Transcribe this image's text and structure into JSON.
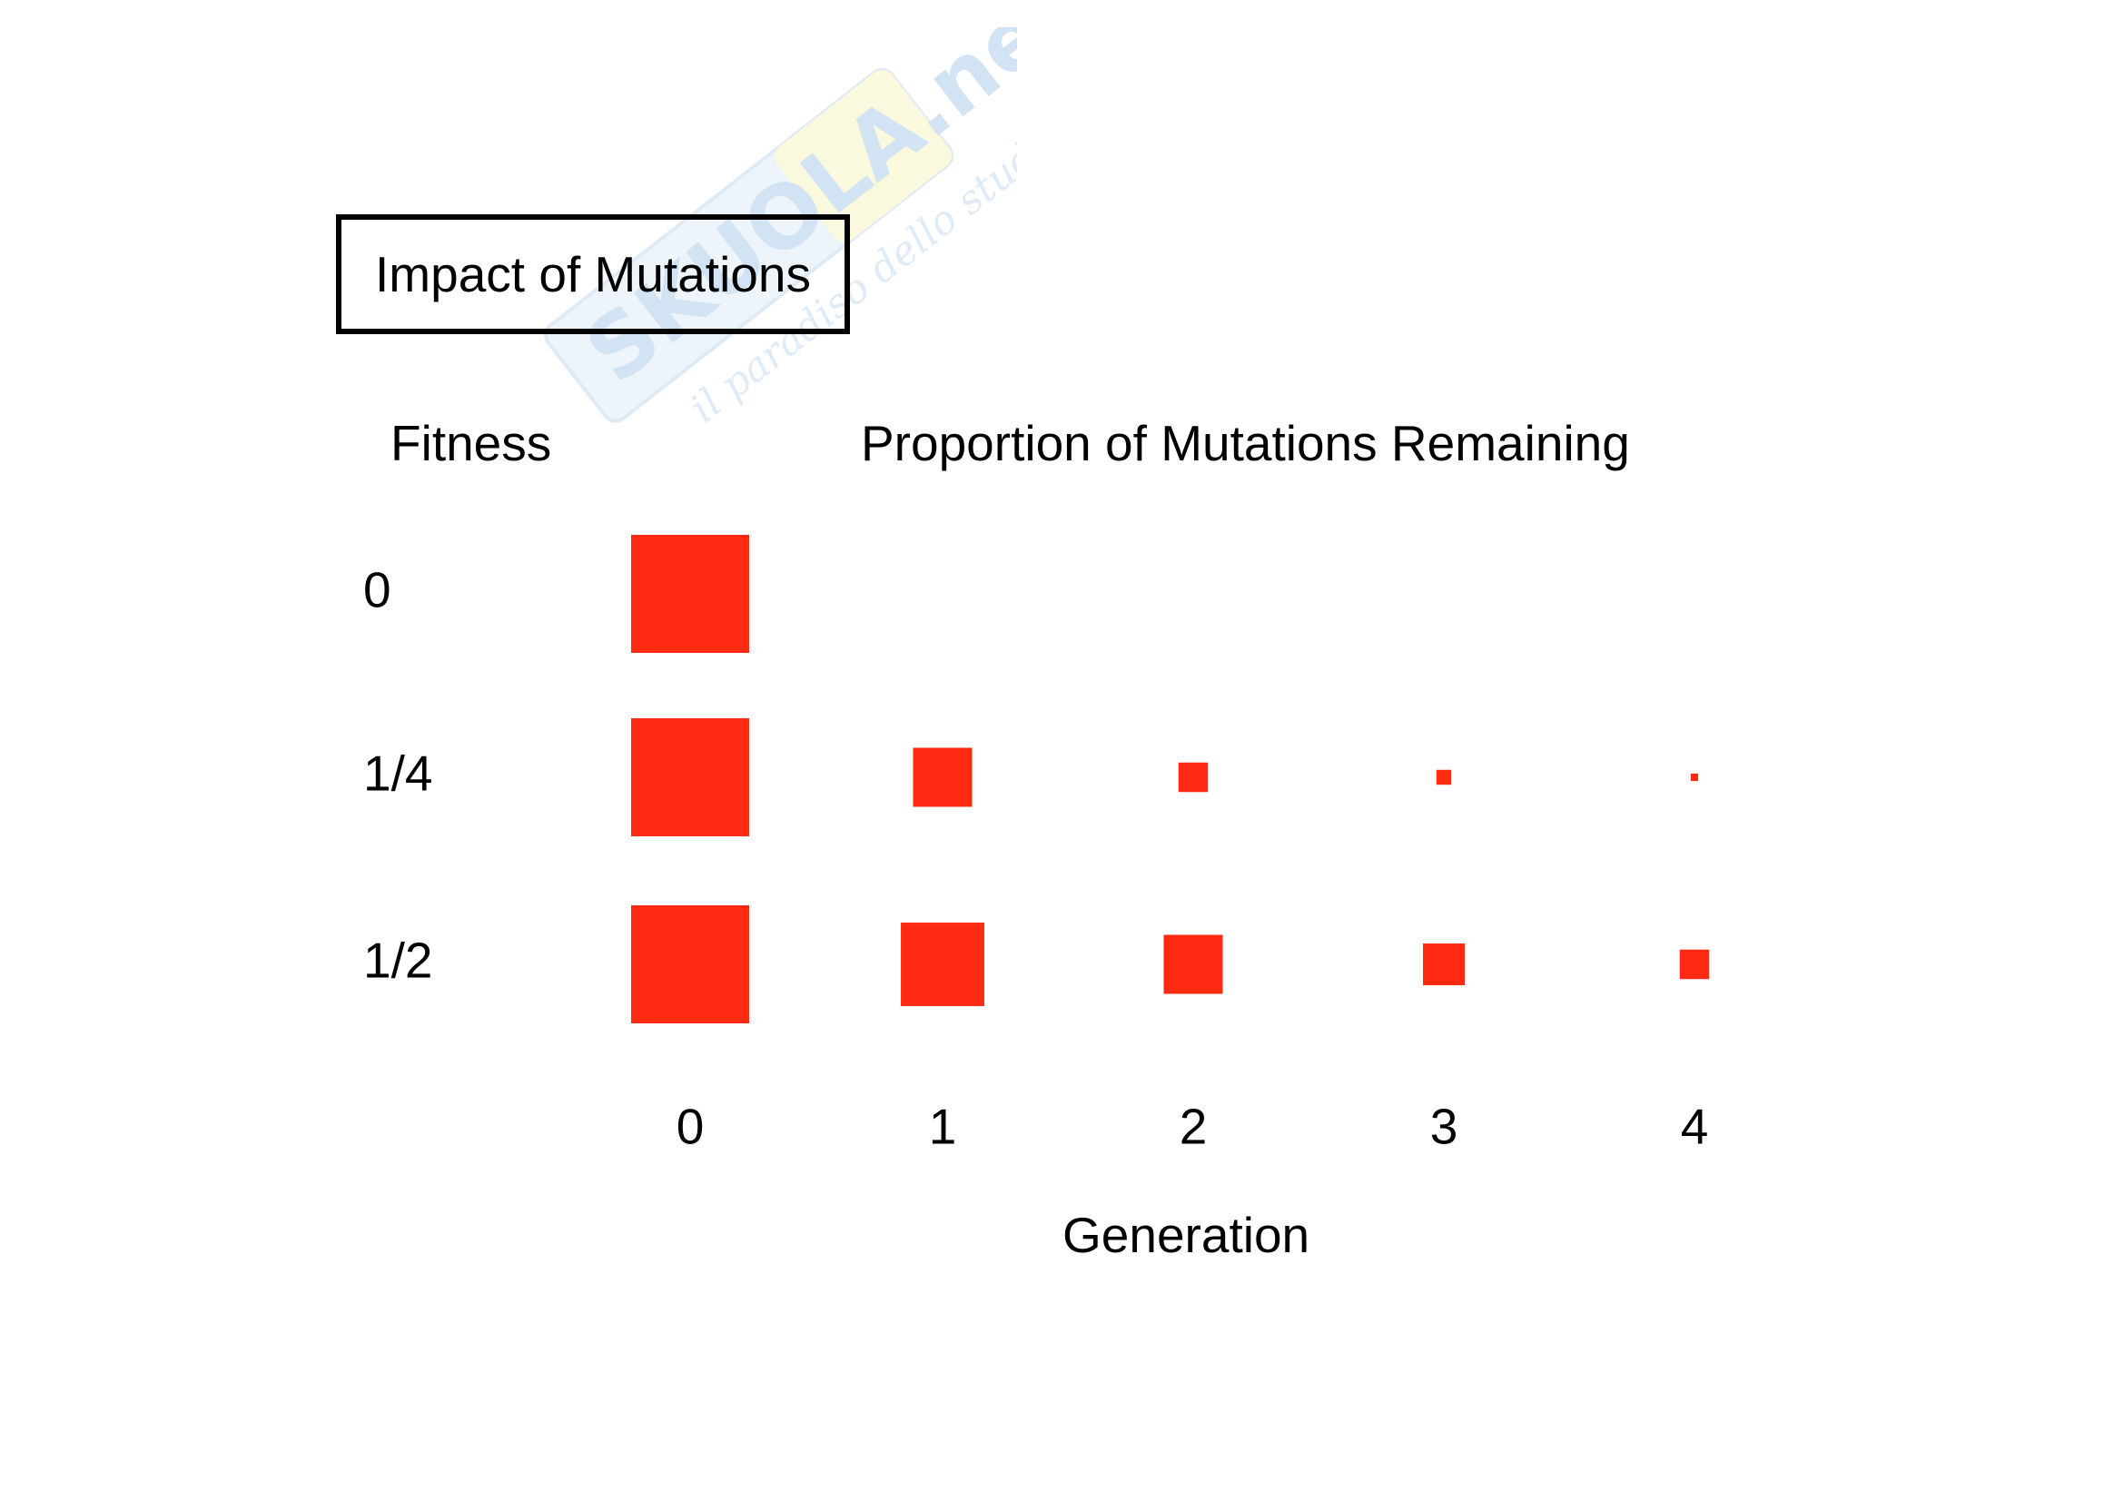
{
  "chart_data": {
    "type": "bubble-matrix",
    "title": "Impact of Mutations",
    "row_header": "Fitness",
    "column_header": "Proportion of Mutations Remaining",
    "xlabel": "Generation",
    "categories": [
      "0",
      "1",
      "2",
      "3",
      "4"
    ],
    "series": [
      {
        "name": "0",
        "values": [
          1.0,
          0,
          0,
          0,
          0
        ]
      },
      {
        "name": "1/4",
        "values": [
          1.0,
          0.25,
          0.0625,
          0.016,
          0.004
        ]
      },
      {
        "name": "1/2",
        "values": [
          1.0,
          0.5,
          0.25,
          0.125,
          0.0625
        ]
      }
    ],
    "mark_color": "#ff2a12"
  },
  "watermark": {
    "brand": "SKUOLA.net",
    "tagline": "il paradiso dello studente"
  }
}
